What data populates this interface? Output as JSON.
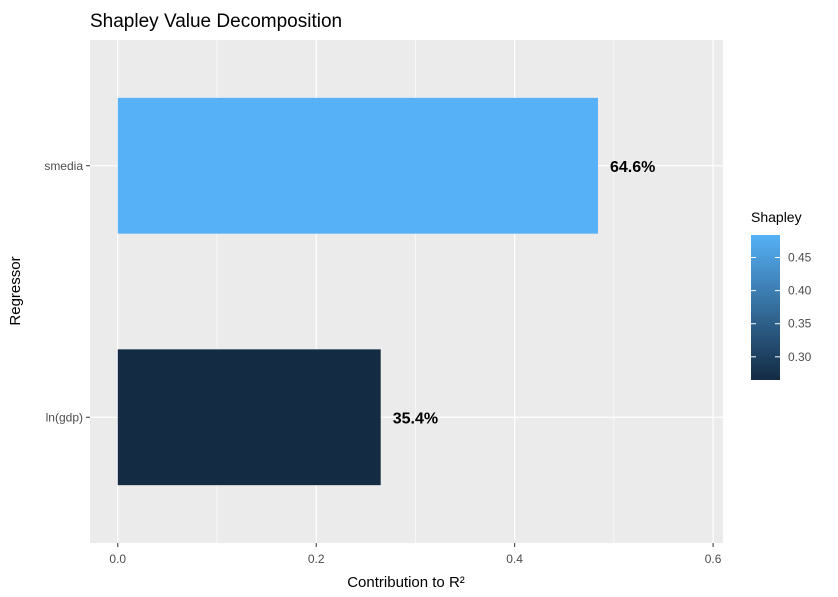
{
  "chart_data": {
    "type": "bar",
    "orientation": "horizontal",
    "title": "Shapley Value Decomposition",
    "xlabel": "Contribution to R²",
    "ylabel": "Regressor",
    "categories": [
      "ln(gdp)",
      "smedia"
    ],
    "values": [
      0.265,
      0.484
    ],
    "data_labels": [
      "35.4%",
      "64.6%"
    ],
    "xlim": [
      -0.028,
      0.61
    ],
    "x_ticks": [
      0.0,
      0.2,
      0.4,
      0.6
    ],
    "x_tick_labels": [
      "0.0",
      "0.2",
      "0.4",
      "0.6"
    ],
    "grid": true,
    "legend": {
      "title": "Shapley",
      "type": "colorbar",
      "position": "right",
      "range": [
        0.265,
        0.484
      ],
      "ticks": [
        0.3,
        0.35,
        0.4,
        0.45
      ],
      "tick_labels": [
        "0.30",
        "0.35",
        "0.40",
        "0.45"
      ],
      "low_color": "#132B43",
      "high_color": "#56B1F7"
    },
    "panel_color": "#EBEBEB",
    "grid_color": "#FFFFFF"
  }
}
